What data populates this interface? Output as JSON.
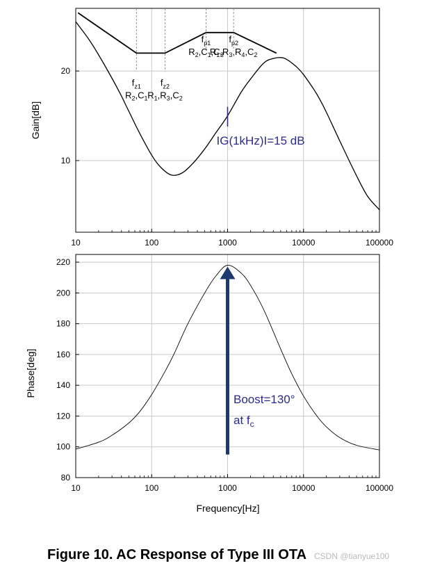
{
  "caption": "Figure 10.   AC Response of Type III OTA",
  "watermark": "CSDN @tianyue100",
  "chart_data": [
    {
      "type": "line",
      "ylabel": "Gain[dB]",
      "xscale": "log",
      "xlim": [
        10,
        100000
      ],
      "ylim": [
        2,
        27
      ],
      "yticks": [
        10,
        20
      ],
      "xticks": [
        10,
        100,
        1000,
        10000,
        100000
      ],
      "xtick_labels": [
        "10",
        "100",
        "1000",
        "10000",
        "100000"
      ],
      "grid": true,
      "series": [
        {
          "x": [
            10,
            15,
            20,
            30,
            40,
            50,
            70,
            100,
            130,
            180,
            250,
            350,
            500,
            700,
            1000,
            1500,
            2000,
            3000,
            4000,
            5000,
            6000,
            8000,
            10000,
            15000,
            20000,
            30000,
            50000,
            70000,
            100000
          ],
          "values": [
            25.5,
            23.5,
            21.8,
            19.2,
            17.2,
            15.5,
            13.0,
            10.6,
            9.3,
            8.4,
            8.6,
            9.7,
            11.3,
            13.1,
            15.0,
            17.6,
            19.1,
            20.9,
            21.4,
            21.5,
            21.3,
            20.5,
            19.6,
            17.4,
            15.4,
            12.2,
            8.3,
            6.0,
            4.5
          ]
        },
        {
          "x": [
            10.7,
            63,
            150,
            520,
            1200,
            4400
          ],
          "values": [
            26.5,
            22.0,
            22.0,
            24.3,
            24.3,
            22.0
          ]
        }
      ],
      "annotations": [
        {
          "sym": "f",
          "sub": "z1",
          "comp": [
            [
              "R",
              "2"
            ],
            [
              "C",
              "1"
            ]
          ],
          "x": 63
        },
        {
          "sym": "f",
          "sub": "z2",
          "comp": [
            [
              "R",
              "1"
            ],
            [
              "R",
              "3"
            ],
            [
              "C",
              "2"
            ]
          ],
          "x": 150
        },
        {
          "sym": "f",
          "sub": "p1",
          "comp": [
            [
              "R",
              "2"
            ],
            [
              "C",
              "1"
            ],
            [
              "C",
              "3"
            ]
          ],
          "x": 520
        },
        {
          "sym": "f",
          "sub": "p2",
          "comp": [
            [
              "R",
              "1"
            ],
            [
              "R",
              "3"
            ],
            [
              "R",
              "4"
            ],
            [
              "C",
              "2"
            ]
          ],
          "x": 1200
        }
      ],
      "marker_text": "IG(1kHz)I=15 dB"
    },
    {
      "type": "line",
      "ylabel": "Phase[deg]",
      "xlabel": "Frequency[Hz]",
      "xscale": "log",
      "xlim": [
        10,
        100000
      ],
      "ylim": [
        80,
        225
      ],
      "yticks": [
        80,
        100,
        120,
        140,
        160,
        180,
        200,
        220
      ],
      "xticks": [
        10,
        100,
        1000,
        10000,
        100000
      ],
      "xtick_labels": [
        "10",
        "100",
        "1000",
        "10000",
        "100000"
      ],
      "grid": true,
      "series": [
        {
          "x": [
            10,
            20,
            30,
            50,
            70,
            100,
            150,
            200,
            300,
            500,
            700,
            1000,
            1500,
            2000,
            3000,
            5000,
            7000,
            10000,
            15000,
            20000,
            30000,
            50000,
            100000
          ],
          "values": [
            98.5,
            103,
            107.5,
            115.5,
            123,
            134,
            149,
            161,
            180,
            200,
            211,
            218,
            213,
            205,
            189,
            163.5,
            147.5,
            133,
            120,
            113,
            106,
            101,
            98
          ]
        }
      ],
      "arrow": {
        "x": 1000,
        "y_from": 95,
        "y_to": 218
      },
      "boost_text": "Boost=130°",
      "at_text": "at f",
      "at_sub": "c"
    }
  ]
}
